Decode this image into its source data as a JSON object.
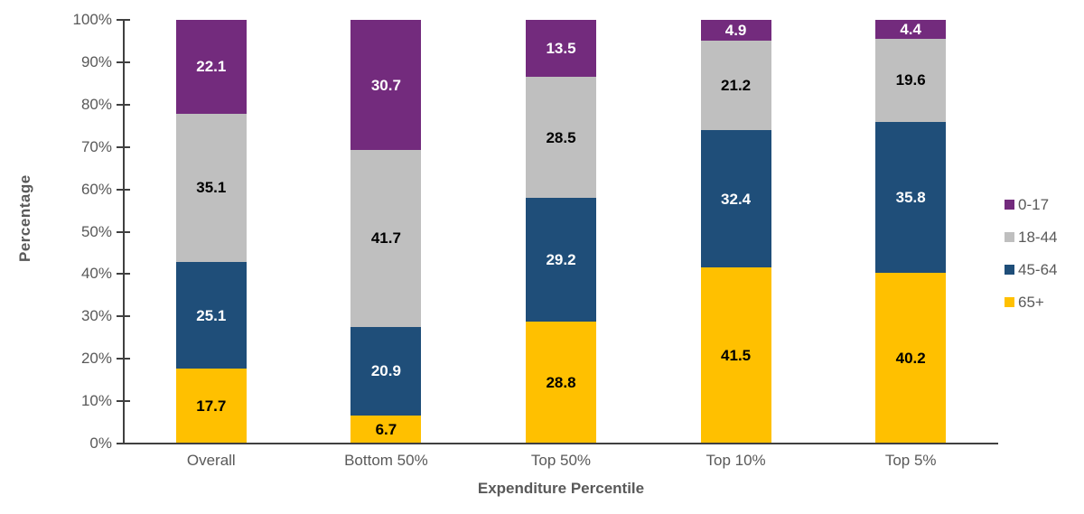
{
  "chart_data": {
    "type": "bar",
    "stacked": true,
    "categories": [
      "Overall",
      "Bottom 50%",
      "Top 50%",
      "Top 10%",
      "Top 5%"
    ],
    "series": [
      {
        "name": "65+",
        "color": "#FFC000",
        "label_color": "#000000",
        "values": [
          17.7,
          6.7,
          28.8,
          41.5,
          40.2
        ]
      },
      {
        "name": "45-64",
        "color": "#1F4E79",
        "label_color": "#FFFFFF",
        "values": [
          25.1,
          20.9,
          29.2,
          32.4,
          35.8
        ]
      },
      {
        "name": "18-44",
        "color": "#BFBFBF",
        "label_color": "#000000",
        "values": [
          35.1,
          41.7,
          28.5,
          21.2,
          19.6
        ]
      },
      {
        "name": "0-17",
        "color": "#732B7D",
        "label_color": "#FFFFFF",
        "values": [
          22.1,
          30.7,
          13.5,
          4.9,
          4.4
        ]
      }
    ],
    "xlabel": "Expenditure Percentile",
    "ylabel": "Percentage",
    "ylim": [
      0,
      100
    ],
    "ytick_step": 10,
    "ytick_labels": [
      "0%",
      "10%",
      "20%",
      "30%",
      "40%",
      "50%",
      "60%",
      "70%",
      "80%",
      "90%",
      "100%"
    ],
    "grid": false,
    "legend": {
      "position": "right",
      "order": [
        "0-17",
        "18-44",
        "45-64",
        "65+"
      ]
    }
  },
  "colors": {
    "axis": "#404040",
    "tick_label": "#595959",
    "axis_title": "#595959",
    "background": "#FFFFFF"
  }
}
